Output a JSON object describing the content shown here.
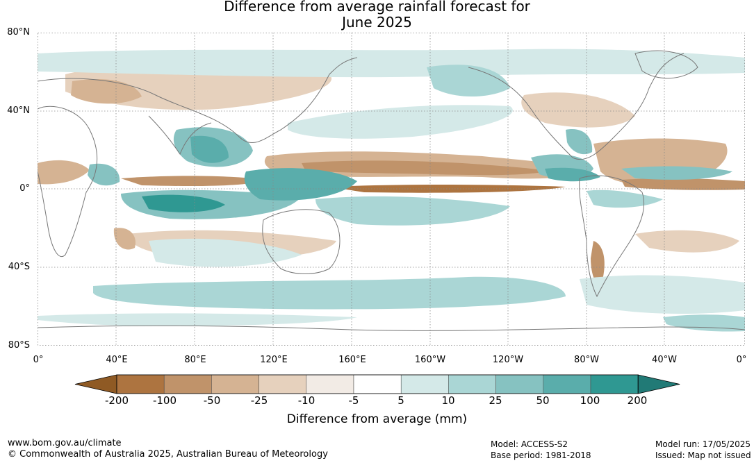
{
  "title": {
    "line1": "Difference from average rainfall forecast for",
    "line2": "June 2025"
  },
  "axes": {
    "y_labels": [
      "80°N",
      "40°N",
      "0°",
      "40°S",
      "80°S"
    ],
    "x_labels": [
      "0°",
      "40°E",
      "80°E",
      "120°E",
      "160°E",
      "160°W",
      "120°W",
      "80°W",
      "40°W",
      "0°"
    ]
  },
  "legend": {
    "title": "Difference from average (mm)",
    "tick_labels": [
      "-200",
      "-100",
      "-50",
      "-25",
      "-10",
      "-5",
      "5",
      "10",
      "25",
      "50",
      "100",
      "200"
    ],
    "colors": [
      "#8f5a24",
      "#ad7440",
      "#c0936a",
      "#d5b393",
      "#e6d1bd",
      "#f2ebe5",
      "#ffffff",
      "#d4e9e8",
      "#aad6d5",
      "#86c2c1",
      "#5aadab",
      "#2f9892",
      "#217a76"
    ]
  },
  "footer": {
    "website": "www.bom.gov.au/climate",
    "copyright": "© Commonwealth of Australia 2025, Australian Bureau of Meteorology",
    "model": "Model: ACCESS-S2",
    "base_period": "Base period: 1981-2018",
    "model_run": "Model run: 17/05/2025",
    "issued": "Issued: Map not issued"
  },
  "map": {
    "colors": {
      "dry_strong": "#ad7440",
      "dry_mid": "#c0936a",
      "dry_light": "#d5b393",
      "dry_faint": "#e6d1bd",
      "wet_faint": "#d4e9e8",
      "wet_light": "#aad6d5",
      "wet_mid": "#86c2c1",
      "wet_strong": "#5aadab",
      "wet_max": "#2f9892",
      "coast": "#777777",
      "grid": "#888888"
    }
  }
}
